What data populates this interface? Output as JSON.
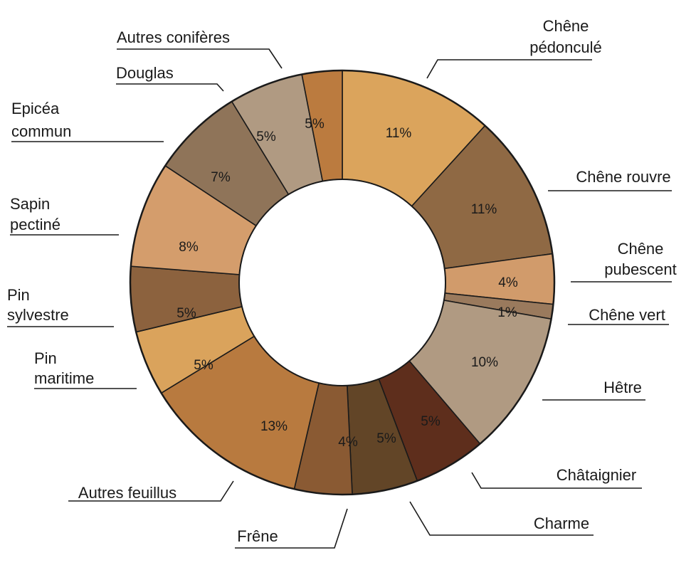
{
  "chart_data": {
    "type": "pie",
    "donut": true,
    "title": "",
    "categories": [
      "Chêne pédonculé",
      "Chêne rouvre",
      "Chêne pubescent",
      "Chêne vert",
      "Hêtre",
      "Châtaignier",
      "Charme",
      "Frêne",
      "Autres feuillus",
      "Pin maritime",
      "Pin sylvestre",
      "Sapin pectiné",
      "Epicéa commun",
      "Douglas",
      "Autres conifères"
    ],
    "values": [
      11,
      11,
      4,
      1,
      10,
      5,
      5,
      4,
      13,
      5,
      5,
      8,
      7,
      5,
      5
    ],
    "data_labels": [
      "11%",
      "11%",
      "4%",
      "1%",
      "10%",
      "5%",
      "5%",
      "4%",
      "13%",
      "5%",
      "5%",
      "8%",
      "7%",
      "5%",
      "5%"
    ],
    "colors": [
      "#dba45c",
      "#8f6944",
      "#d19b6b",
      "#9a7a5d",
      "#b09a82",
      "#5e2e1c",
      "#624527",
      "#8a5a33",
      "#b87a3f",
      "#daa35c",
      "#8c623e",
      "#d49d6c",
      "#8f7459",
      "#b09a82",
      "#bb7b3f"
    ],
    "legend": "none"
  }
}
